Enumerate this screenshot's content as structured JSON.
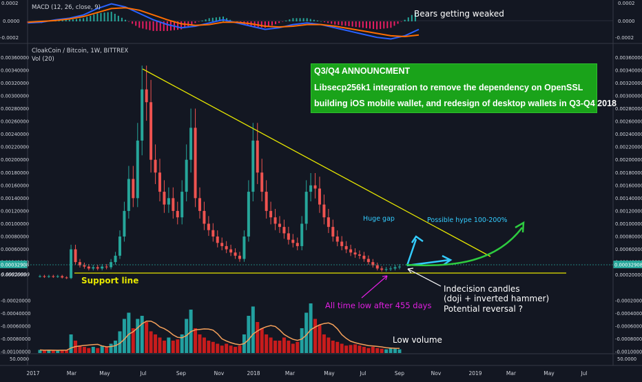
{
  "colors": {
    "background": "#131722",
    "up": "#26a69a",
    "down": "#ef5350",
    "volume_up": "#22a0a0",
    "volume_down": "#c81c1c",
    "volume_ma": "#f5a15b",
    "macd_line": "#2962ff",
    "signal_line": "#ff6d00",
    "trendline": "#e6e600",
    "support": "#e6e600",
    "cyan_arrow": "#33ccff",
    "green_arrow": "#2ecc40",
    "magenta": "#e11fe1",
    "info_box": "#1aa31a"
  },
  "macd": {
    "title": "MACD (12, 26, close, 9)",
    "ticks": [
      "0.0002",
      "0.0000",
      "-0.0002"
    ]
  },
  "main": {
    "title": "CloakCoin / Bitcoin, 1W, BITTREX",
    "subtitle": "Vol (20)",
    "price_ticks": [
      "0.00360000",
      "0.00340000",
      "0.00320000",
      "0.00300000",
      "0.00280000",
      "0.00260000",
      "0.00240000",
      "0.00220000",
      "0.00200000",
      "0.00180000",
      "0.00160000",
      "0.00140000",
      "0.00120000",
      "0.00100000",
      "0.00080000",
      "0.00060000",
      "0.00040000",
      "0.00020000",
      "-0.00020000",
      "-0.00040000",
      "-0.00060000",
      "-0.00080000",
      "-0.00100000"
    ],
    "right_extra_tick": "0.00020000",
    "current_price": "0.00032908",
    "left_extra_tick": "0.00020000",
    "bottom_tick": "50.0000"
  },
  "x_axis": [
    "2017",
    "Mar",
    "May",
    "Jul",
    "Sep",
    "Nov",
    "2018",
    "Mar",
    "May",
    "Jul",
    "Sep",
    "Nov",
    "2019",
    "Mar",
    "May",
    "Jul"
  ],
  "annotations": {
    "bears": "Bears getting weaked",
    "support": "Support line",
    "huge_gap": "Huge gap",
    "hype": "Possible hype 100-200%",
    "all_time_low": "All time low after 455 days",
    "indecision_1": "Indecision candles",
    "indecision_2": "(doji + inverted hammer)",
    "indecision_3": "Potential reversal ?",
    "low_volume": "Low volume"
  },
  "info_box": {
    "line1": "Q3/Q4 ANNOUNCMENT",
    "line2": "Libsecp256k1 integration to remove the dependency on OpenSSL",
    "line3": "building iOS mobile wallet, and redesign of desktop wallets in Q3-Q4 2018"
  },
  "chart_data": {
    "type": "candlestick",
    "title": "CloakCoin / Bitcoin, 1W, BITTREX",
    "period": "weekly",
    "y_range": [
      -0.001,
      0.0037
    ],
    "support_level": 0.00021,
    "trendline": {
      "from": [
        "Jul 2017",
        0.00334
      ],
      "to": [
        "Dec 2018",
        0.0004
      ]
    },
    "candles_close_approx": [
      0.00018,
      0.00017,
      0.00018,
      0.00017,
      0.00018,
      0.00016,
      0.00015,
      0.0006,
      0.0004,
      0.00035,
      0.00033,
      0.0003,
      0.00032,
      0.0003,
      0.00033,
      0.00032,
      0.0004,
      0.0005,
      0.0008,
      0.0012,
      0.0017,
      0.0014,
      0.0023,
      0.0031,
      0.0029,
      0.002,
      0.0018,
      0.0015,
      0.0013,
      0.0014,
      0.0012,
      0.0011,
      0.0015,
      0.002,
      0.0025,
      0.0014,
      0.0012,
      0.001,
      0.0009,
      0.0008,
      0.0007,
      0.00065,
      0.0006,
      0.00055,
      0.0005,
      0.00045,
      0.0008,
      0.0015,
      0.0023,
      0.0018,
      0.0015,
      0.0012,
      0.0011,
      0.001,
      0.00095,
      0.00085,
      0.00075,
      0.0007,
      0.00065,
      0.001,
      0.0015,
      0.0016,
      0.00155,
      0.0013,
      0.0011,
      0.00095,
      0.0008,
      0.00072,
      0.00065,
      0.0006,
      0.00055,
      0.00052,
      0.0005,
      0.00045,
      0.0004,
      0.00035,
      0.0003,
      0.00028,
      0.00029,
      0.0003,
      0.00032,
      0.00033
    ],
    "volume_scaled": [
      0.05,
      0.04,
      0.05,
      0.04,
      0.04,
      0.05,
      0.05,
      0.3,
      0.2,
      0.12,
      0.1,
      0.08,
      0.1,
      0.08,
      0.12,
      0.1,
      0.15,
      0.2,
      0.35,
      0.55,
      0.65,
      0.4,
      0.55,
      0.6,
      0.5,
      0.35,
      0.3,
      0.25,
      0.2,
      0.25,
      0.2,
      0.22,
      0.3,
      0.55,
      0.7,
      0.4,
      0.3,
      0.25,
      0.2,
      0.18,
      0.15,
      0.12,
      0.15,
      0.12,
      0.1,
      0.12,
      0.3,
      0.6,
      0.75,
      0.5,
      0.4,
      0.3,
      0.25,
      0.2,
      0.2,
      0.25,
      0.2,
      0.15,
      0.18,
      0.4,
      0.65,
      0.8,
      0.55,
      0.45,
      0.3,
      0.25,
      0.2,
      0.18,
      0.15,
      0.12,
      0.13,
      0.14,
      0.12,
      0.1,
      0.08,
      0.1,
      0.08,
      0.07,
      0.06,
      0.08,
      0.07,
      0.06
    ],
    "macd_points": [
      -2e-05,
      -1e-05,
      2e-05,
      4e-05,
      8e-05,
      0.00016,
      0.00022,
      0.00018,
      0.0001,
      2e-05,
      -4e-05,
      -8e-05,
      -6e-05,
      -2e-05,
      2e-05,
      -2e-05,
      -6e-05,
      -0.0001,
      -8e-05,
      -4e-05,
      -2e-05,
      -4e-05,
      -8e-05,
      -0.00012,
      -0.00016,
      -0.0002,
      -0.00022,
      -0.00018,
      -0.0001
    ],
    "signal_points": [
      -1e-05,
      0.0,
      1e-05,
      3e-05,
      6e-05,
      0.00011,
      0.00016,
      0.00017,
      0.00014,
      8e-05,
      2e-05,
      -3e-05,
      -5e-05,
      -4e-05,
      -1e-05,
      -1e-05,
      -3e-05,
      -6e-05,
      -7e-05,
      -6e-05,
      -4e-05,
      -4e-05,
      -6e-05,
      -9e-05,
      -0.00012,
      -0.00015,
      -0.00018,
      -0.00019,
      -0.00017
    ]
  }
}
